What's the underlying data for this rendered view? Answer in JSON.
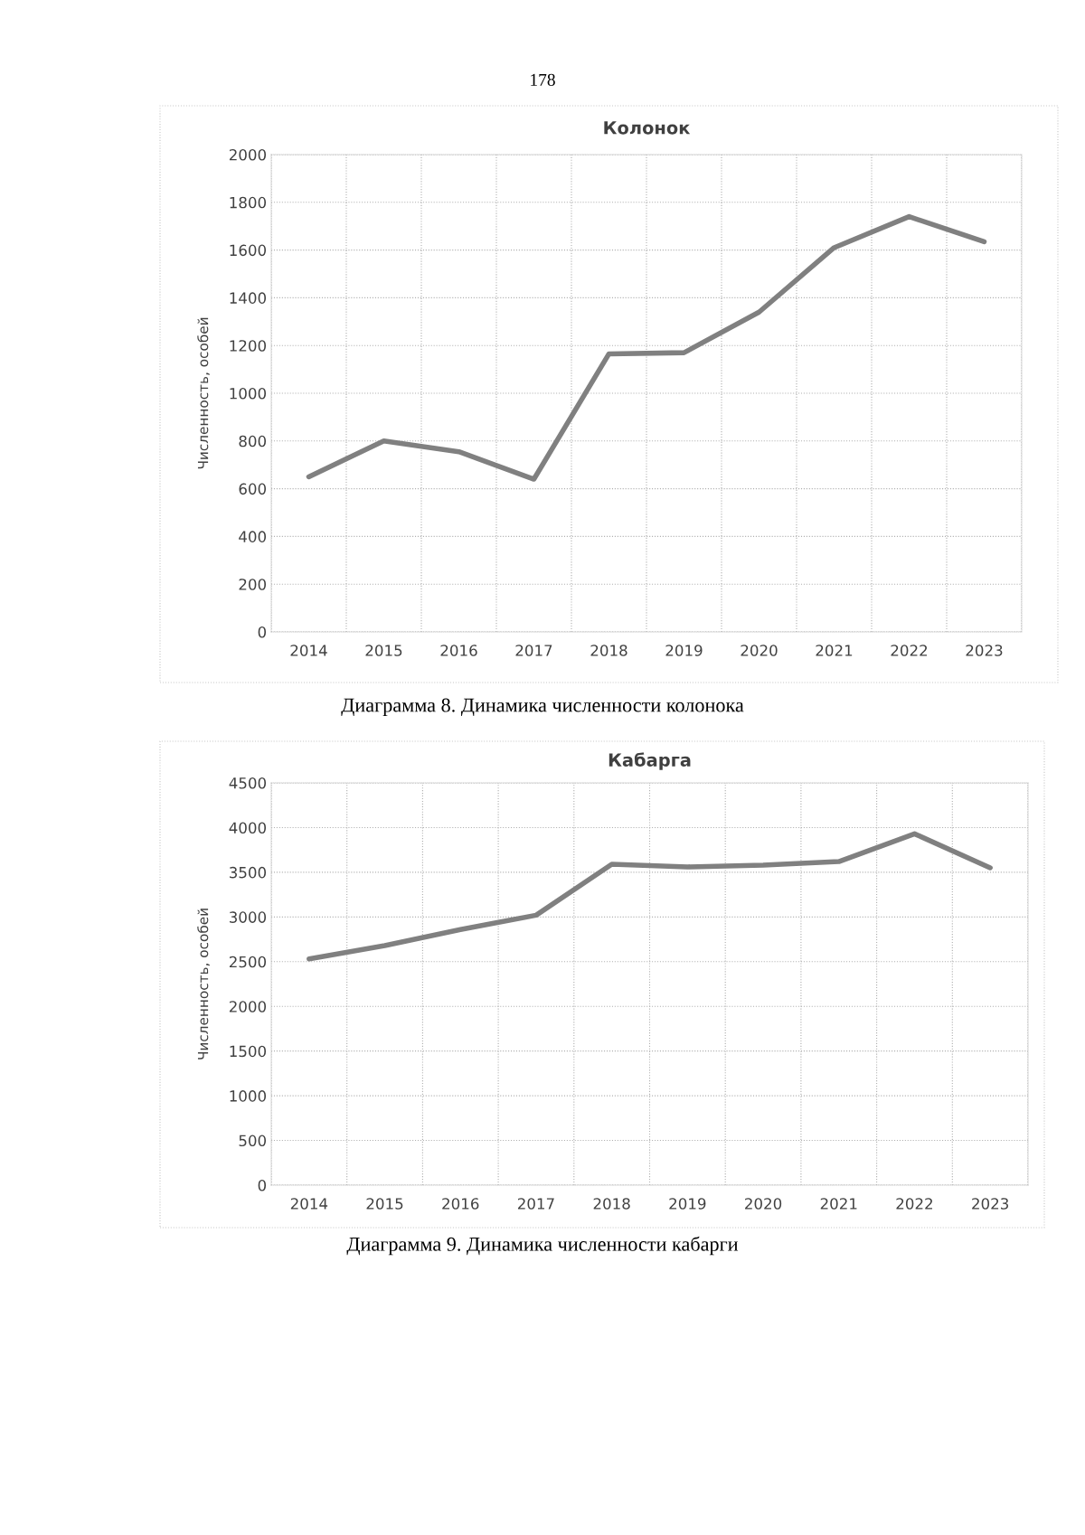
{
  "chart_data": [
    {
      "type": "line",
      "title": "Колонок",
      "ylabel": "Численность, особей",
      "categories": [
        "2014",
        "2015",
        "2016",
        "2017",
        "2018",
        "2019",
        "2020",
        "2021",
        "2022",
        "2023"
      ],
      "series": [
        {
          "color": "#808080",
          "values": [
            650,
            800,
            755,
            640,
            1165,
            1170,
            1340,
            1610,
            1740,
            1635
          ]
        }
      ],
      "ylim": [
        0,
        2000
      ],
      "yticks": [
        0,
        200,
        400,
        600,
        800,
        1000,
        1200,
        1400,
        1600,
        1800,
        2000
      ],
      "grid": true,
      "legend": false,
      "marker": "none",
      "line_style": "solid",
      "annotations": [
        "178",
        "Диаграмма 8. Динамика численности колонока"
      ]
    },
    {
      "type": "line",
      "title": "Кабарга",
      "ylabel": "Численность, особей",
      "categories": [
        "2014",
        "2015",
        "2016",
        "2017",
        "2018",
        "2019",
        "2020",
        "2021",
        "2022",
        "2023"
      ],
      "series": [
        {
          "color": "#808080",
          "values": [
            2530,
            2680,
            2860,
            3020,
            3590,
            3560,
            3580,
            3620,
            3930,
            3550
          ]
        }
      ],
      "ylim": [
        0,
        4500
      ],
      "yticks": [
        0,
        500,
        1000,
        1500,
        2000,
        2500,
        3000,
        3500,
        4000,
        4500
      ],
      "grid": true,
      "legend": false,
      "marker": "none",
      "line_style": "solid",
      "annotations": [
        "Диаграмма 9. Динамика численности кабарги"
      ]
    }
  ]
}
